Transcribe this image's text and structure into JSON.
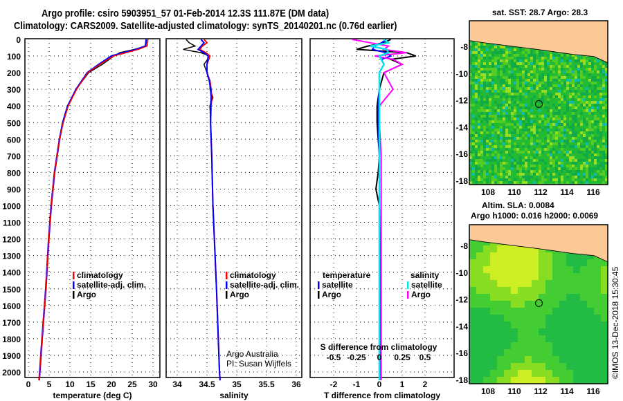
{
  "title_line1": "Argo profile: csiro 5903951_57 01-Feb-2014 12.3S 111.87E (DM data)",
  "title_line2": "Climatology: CARS2009. Satellite-adjusted climatology: synTS_20140201.nc (0.76d earlier)",
  "credit": "©IMOS 13-Dec-2018 15:30:45",
  "colors": {
    "climatology": "#ff0000",
    "satellite": "#0000ff",
    "argo": "#000000",
    "sal_sat": "#00e5ee",
    "sal_argo": "#ff00ff"
  },
  "chart_data": [
    {
      "type": "line",
      "name": "temperature",
      "xlabel": "temperature (deg C)",
      "xlim": [
        -5,
        32
      ],
      "ylim": [
        0,
        2090
      ],
      "xticks": [
        "0",
        "5",
        "10",
        "15",
        "20",
        "25",
        "30"
      ],
      "xtick_values": [
        0,
        5,
        10,
        15,
        20,
        25,
        30
      ],
      "yticks": [
        "0",
        "100",
        "200",
        "300",
        "400",
        "500",
        "600",
        "700",
        "800",
        "900",
        "1000",
        "1100",
        "1200",
        "1300",
        "1400",
        "1500",
        "1600",
        "1700",
        "1800",
        "1900",
        "2000"
      ],
      "legend": [
        "climatology",
        "satellite-adj. clim.",
        "Argo"
      ],
      "depth": [
        0,
        40,
        60,
        80,
        100,
        150,
        200,
        300,
        400,
        500,
        600,
        800,
        1000,
        1200,
        1500,
        1800,
        2050
      ],
      "series": [
        {
          "name": "climatology",
          "values": [
            28.8,
            28.6,
            26.5,
            23.5,
            20.5,
            17.2,
            14.3,
            11.6,
            9.6,
            8.4,
            7.5,
            6.3,
            5.5,
            4.9,
            4.2,
            3.3,
            2.6
          ]
        },
        {
          "name": "satellite-adj. clim.",
          "values": [
            28.4,
            28.2,
            26,
            23,
            20,
            17,
            14.2,
            11.5,
            9.5,
            8.3,
            7.5,
            6.3,
            5.5,
            4.9,
            4.2,
            3.3,
            2.6
          ]
        },
        {
          "name": "Argo",
          "values": [
            28.3,
            28.3,
            25.5,
            22,
            20.6,
            17.8,
            14.5,
            11.5,
            9.4,
            8.2,
            7.5,
            6.3,
            5.5,
            4.9,
            4.2,
            3.3,
            2.6
          ]
        }
      ]
    },
    {
      "type": "line",
      "name": "salinity",
      "xlabel": "salinity",
      "xlim": [
        33.8,
        36.1
      ],
      "xticks": [
        "34",
        "34.5",
        "35",
        "35.5",
        "36"
      ],
      "xtick_values": [
        34,
        34.5,
        35,
        35.5,
        36
      ],
      "legend": [
        "climatology",
        "satellite-adj. clim.",
        "Argo"
      ],
      "annotation": [
        "Argo Australia",
        "PI: Susan Wijffels"
      ],
      "depth": [
        0,
        20,
        40,
        60,
        80,
        100,
        150,
        200,
        250,
        300,
        350,
        400,
        500,
        700,
        1000,
        1500,
        2000,
        2050
      ],
      "series": [
        {
          "name": "climatology",
          "values": [
            34.45,
            34.5,
            34.42,
            34.38,
            34.48,
            34.55,
            34.5,
            34.5,
            34.55,
            34.57,
            34.58,
            34.57,
            34.56,
            34.58,
            34.6,
            34.66,
            34.71,
            34.72
          ]
        },
        {
          "name": "satellite-adj. clim.",
          "values": [
            34.4,
            34.45,
            34.4,
            34.35,
            34.45,
            34.52,
            34.5,
            34.5,
            34.54,
            34.56,
            34.57,
            34.56,
            34.56,
            34.58,
            34.6,
            34.66,
            34.71,
            34.72
          ]
        },
        {
          "name": "Argo",
          "values": [
            34.15,
            34.2,
            34.3,
            34.1,
            34.4,
            34.55,
            34.45,
            34.5,
            34.55,
            34.55,
            34.6,
            34.55,
            34.56,
            34.58,
            34.6,
            34.66,
            34.71,
            34.72
          ]
        }
      ]
    },
    {
      "type": "line",
      "name": "difference",
      "xlabel": "T difference from climatology",
      "xlim": [
        -3,
        3
      ],
      "xticks": [
        "-2",
        "-1",
        "0",
        "1",
        "2"
      ],
      "xtick_values": [
        -2,
        -1,
        0,
        1,
        2
      ],
      "s_label": "S difference from climatology",
      "s_ticks": [
        "-0.5",
        "-0.25",
        "0",
        "0.25",
        "0.5"
      ],
      "s_tick_values": [
        -0.5,
        -0.25,
        0,
        0.25,
        0.5
      ],
      "legend_temperature": {
        "title": "temperature",
        "items": [
          "satellite",
          "Argo"
        ]
      },
      "legend_salinity": {
        "title": "salinity",
        "items": [
          "satellite",
          "Argo"
        ]
      },
      "depth": [
        0,
        20,
        40,
        60,
        80,
        100,
        120,
        150,
        200,
        300,
        400,
        500,
        700,
        800,
        900,
        1000,
        1400,
        2000,
        2050
      ],
      "series": [
        {
          "name": "T satellite",
          "values": [
            0.3,
            0.1,
            -0.2,
            -0.3,
            0.3,
            0.5,
            0.1,
            0.2,
            0,
            0,
            -0.05,
            -0.05,
            0,
            0,
            0,
            0,
            0.05,
            0.02,
            0.02
          ]
        },
        {
          "name": "T Argo",
          "values": [
            0.5,
            0.2,
            -0.5,
            -1.0,
            1.2,
            1.6,
            0.5,
            1.0,
            0.2,
            0,
            -0.1,
            -0.1,
            0,
            -0.05,
            -0.15,
            0,
            0.05,
            0,
            0
          ]
        },
        {
          "name": "S satellite",
          "values": [
            0.05,
            0.1,
            -0.1,
            0.08,
            0.1,
            0,
            0.02,
            0.05,
            0,
            0,
            0,
            0,
            0,
            0,
            0,
            0,
            0,
            0,
            0
          ]
        },
        {
          "name": "S Argo",
          "values": [
            -0.3,
            -0.1,
            0.1,
            0.05,
            0.3,
            -0.05,
            0.15,
            0.25,
            0.05,
            0.15,
            0,
            0,
            0.02,
            0.02,
            0.02,
            0.02,
            0.02,
            0.02,
            0.02
          ]
        }
      ]
    },
    {
      "type": "heatmap",
      "name": "sst_map",
      "title": "sat. SST: 28.7 Argo: 28.3",
      "xticks": [
        "108",
        "110",
        "112",
        "114",
        "116"
      ],
      "xtick_values": [
        108,
        110,
        112,
        114,
        116
      ],
      "yticks": [
        "-8",
        "-10",
        "-12",
        "-14",
        "-16",
        "-18"
      ],
      "ytick_values": [
        -8,
        -10,
        -12,
        -14,
        -16,
        -18
      ],
      "argo_position": [
        111.87,
        -12.3
      ]
    },
    {
      "type": "heatmap",
      "name": "sla_map",
      "title": [
        "Altim. SLA: 0.0084",
        "Argo h1000: 0.016 h2000: 0.0069"
      ],
      "xticks": [
        "108",
        "110",
        "112",
        "114",
        "116"
      ],
      "xtick_values": [
        108,
        110,
        112,
        114,
        116
      ],
      "yticks": [
        "-8",
        "-10",
        "-12",
        "-14",
        "-16",
        "-18"
      ],
      "ytick_values": [
        -8,
        -10,
        -12,
        -14,
        -16,
        -18
      ],
      "argo_position": [
        111.87,
        -12.3
      ]
    }
  ]
}
